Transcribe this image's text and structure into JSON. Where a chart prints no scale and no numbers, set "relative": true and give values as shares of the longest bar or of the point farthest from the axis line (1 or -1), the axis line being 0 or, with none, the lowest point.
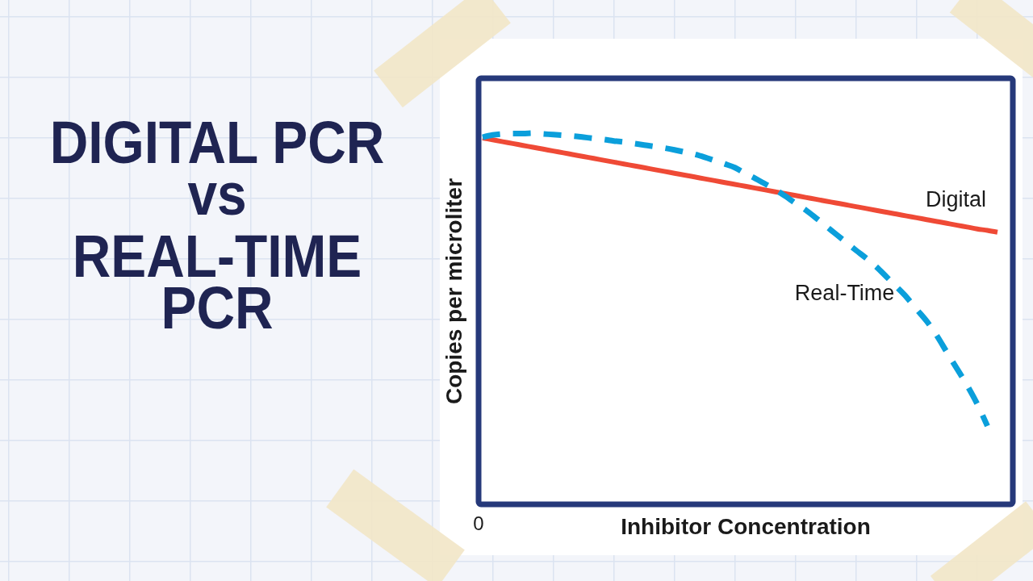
{
  "chart_data": {
    "type": "line",
    "title": "DIGITAL PCR\nvs\nREAL-TIME\nPCR",
    "xlabel": "Inhibitor Concentration",
    "ylabel": "Copies per microliter",
    "relative": true,
    "annotations": [
      "0"
    ],
    "categories": [
      null,
      null,
      null,
      null,
      null,
      null,
      null,
      null,
      null,
      null,
      null,
      null,
      null,
      null,
      null,
      null,
      null,
      null,
      null,
      null,
      null,
      null,
      null,
      null,
      null,
      null,
      null,
      null,
      null,
      null,
      null,
      null,
      null,
      null,
      null,
      null,
      null,
      null,
      null,
      null,
      null,
      null,
      null,
      null,
      null,
      null,
      null,
      null,
      null,
      null,
      null,
      null
    ],
    "series": [
      {
        "name": "Digital",
        "color": "#ef4a36",
        "line_style": "solid",
        "values": [
          0.987,
          0.982,
          0.977,
          0.972,
          0.967,
          0.962,
          0.957,
          0.952,
          0.947,
          0.942,
          0.937,
          0.932,
          0.927,
          0.922,
          0.917,
          0.912,
          0.907,
          0.902,
          0.897,
          0.892,
          0.887,
          0.882,
          0.877,
          0.872,
          0.867,
          0.862,
          0.857,
          0.852,
          0.847,
          0.842,
          0.837,
          0.832,
          0.827,
          0.822,
          0.817,
          0.812,
          0.807,
          0.802,
          0.797,
          0.792,
          0.787,
          0.782,
          0.777,
          0.772,
          0.767,
          0.762,
          0.757,
          0.752,
          0.747,
          0.742,
          0.738,
          0.733
        ]
      },
      {
        "name": "Real-Time",
        "color": "#0b9fdb",
        "line_style": "dashed",
        "values": [
          0.989,
          0.995,
          0.998,
          0.999,
          0.999,
          1,
          0.998,
          0.996,
          0.994,
          0.992,
          0.989,
          0.986,
          0.983,
          0.979,
          0.976,
          0.972,
          0.968,
          0.964,
          0.96,
          0.955,
          0.949,
          0.943,
          0.935,
          0.926,
          0.917,
          0.907,
          0.892,
          0.878,
          0.863,
          0.848,
          0.83,
          0.811,
          0.793,
          0.772,
          0.75,
          0.728,
          0.706,
          0.684,
          0.663,
          0.64,
          0.613,
          0.586,
          0.558,
          0.525,
          0.493,
          0.454,
          0.409,
          0.365,
          0.32,
          0.27,
          0.211,
          null
        ]
      }
    ]
  }
}
